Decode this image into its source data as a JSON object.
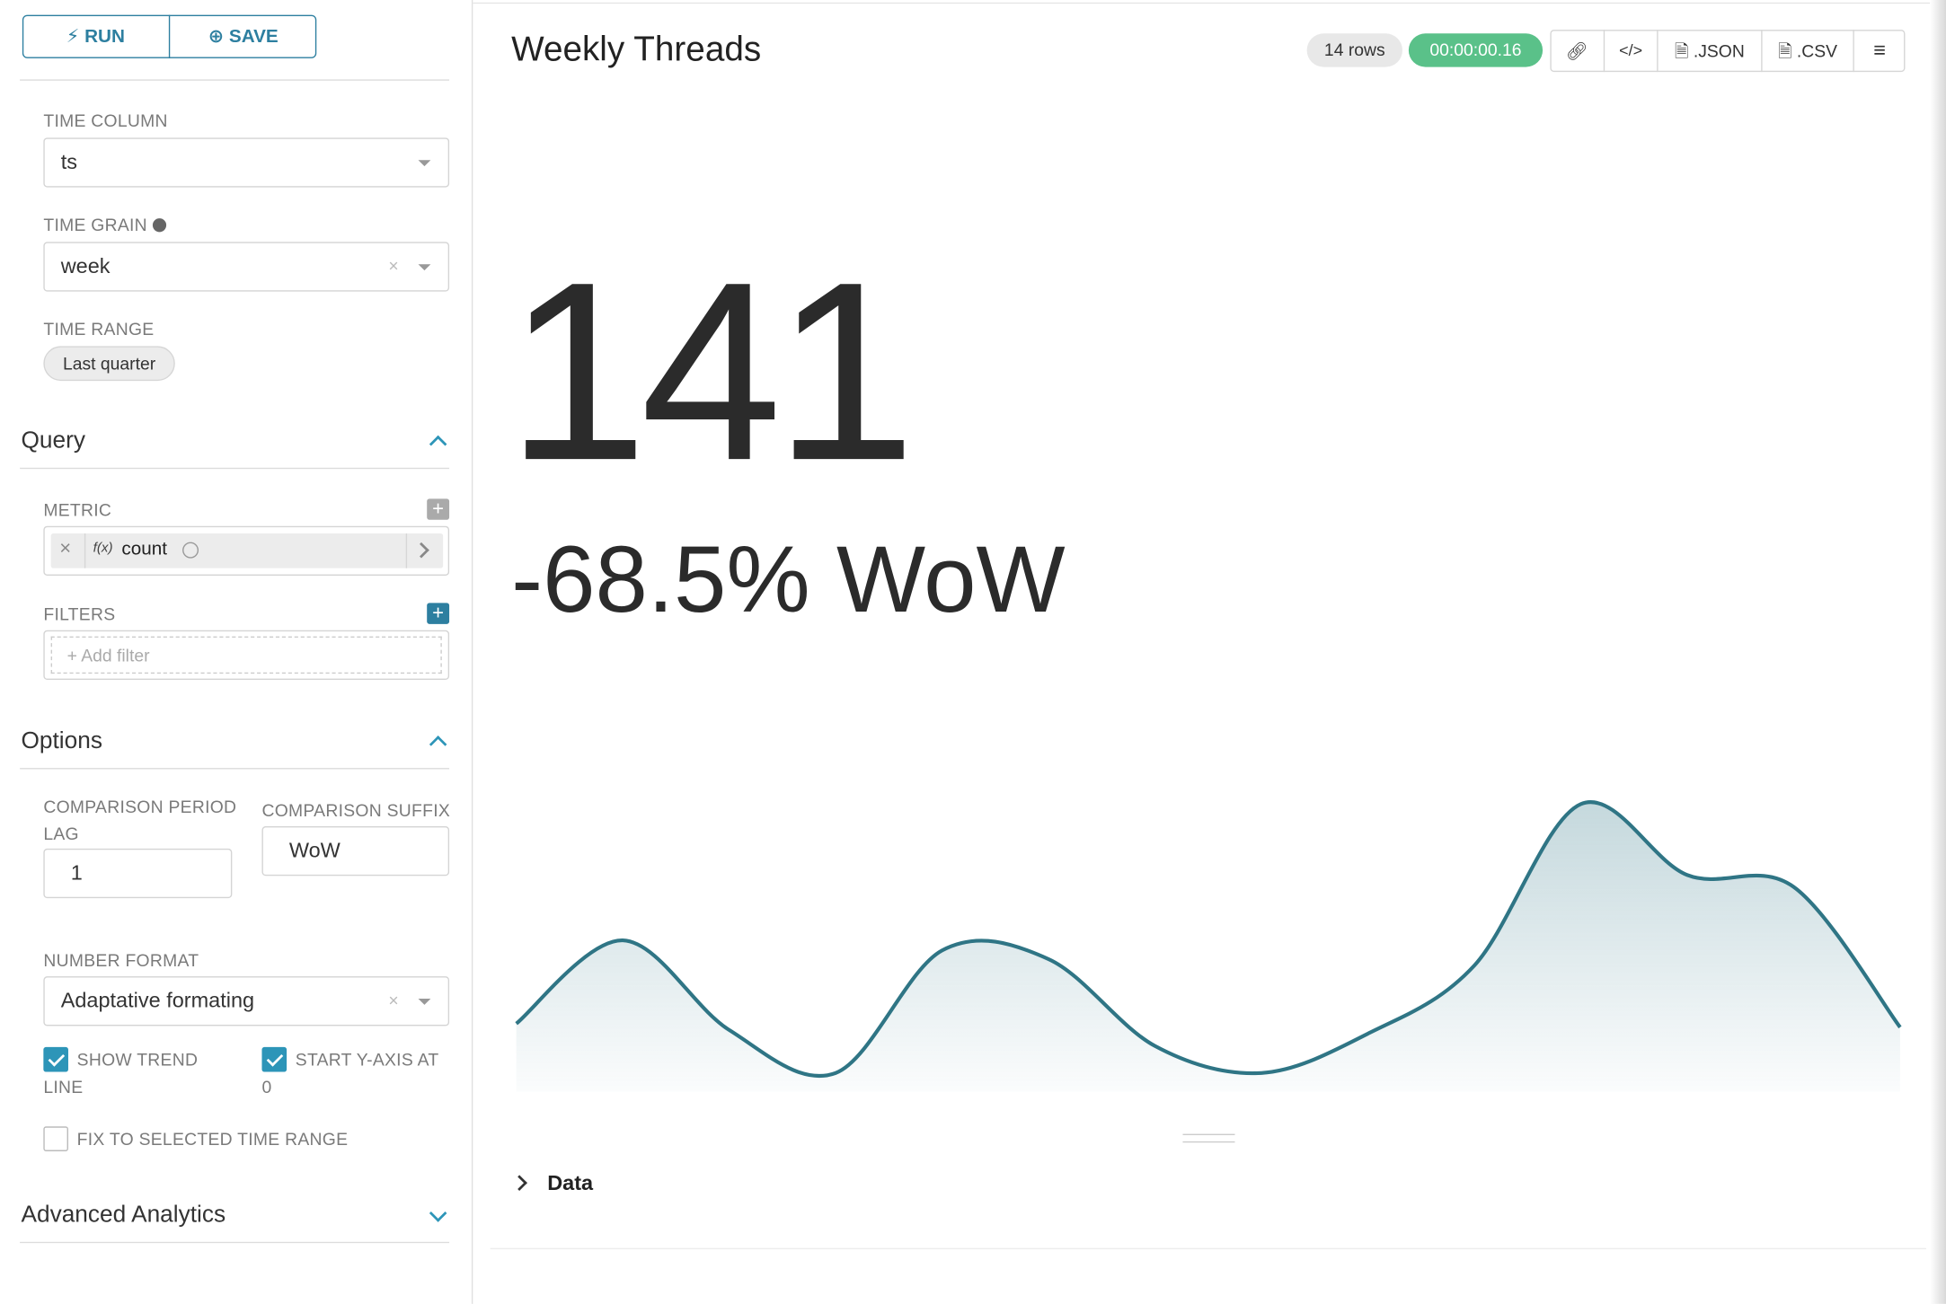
{
  "toolbar": {
    "run": "RUN",
    "save": "SAVE"
  },
  "sidebar": {
    "time": {
      "time_column_label": "TIME COLUMN",
      "time_column": "ts",
      "time_grain_label": "TIME GRAIN",
      "time_grain": "week",
      "time_range_label": "TIME RANGE",
      "time_range": "Last quarter"
    },
    "query": {
      "title": "Query",
      "metric_label": "METRIC",
      "metric_icon": "f(x)",
      "metric": "count",
      "filters_label": "FILTERS",
      "add_filter": "Add filter"
    },
    "options": {
      "title": "Options",
      "lag_label": "COMPARISON PERIOD LAG",
      "lag": "1",
      "suffix_label": "COMPARISON SUFFIX",
      "suffix": "WoW",
      "number_format_label": "NUMBER FORMAT",
      "number_format": "Adaptative formating",
      "show_trend": "SHOW TREND LINE",
      "show_trend_checked": true,
      "start_y": "START Y-AXIS AT 0",
      "start_y_checked": true,
      "fix_range": "FIX TO SELECTED TIME RANGE",
      "fix_range_checked": false
    },
    "advanced": {
      "title": "Advanced Analytics"
    }
  },
  "panel": {
    "title": "Weekly Threads",
    "rows": "14 rows",
    "duration": "00:00:00.16",
    "json": ".JSON",
    "csv": ".CSV",
    "big_number": 141,
    "comparison": "-68.5% WoW",
    "data_toggle": "Data"
  },
  "chart_data": {
    "type": "area",
    "values": [
      149,
      331,
      135,
      41,
      309,
      290,
      100,
      41,
      127,
      276,
      629,
      474,
      448,
      141
    ],
    "color": "#2f7585",
    "ylim": [
      0,
      700
    ]
  }
}
